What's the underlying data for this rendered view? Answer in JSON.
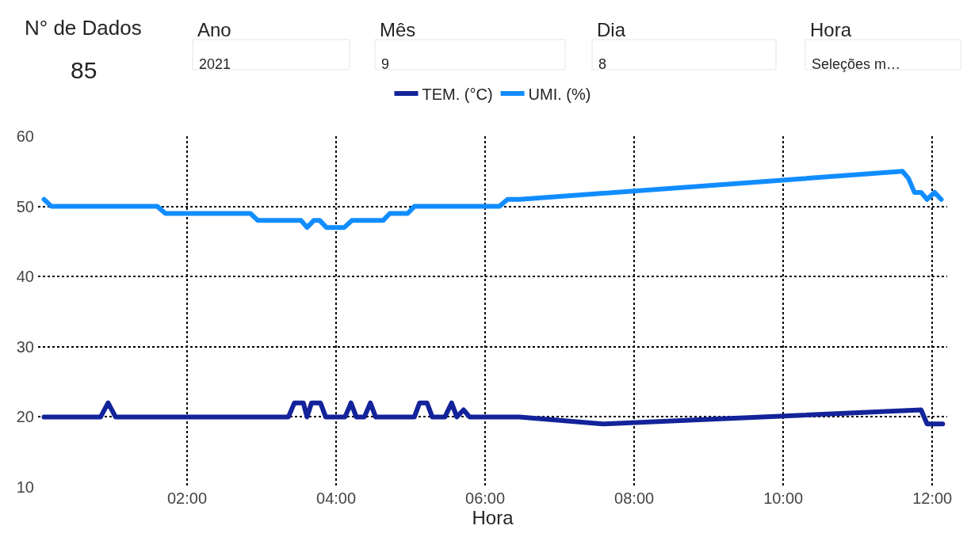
{
  "chart_data": [
    {
      "type": "other",
      "annotations": [
        "N° de Dados",
        "85",
        "Ano",
        "2021",
        "Mês",
        "9",
        "Dia",
        "8",
        "Hora",
        "Seleções m…"
      ]
    },
    {
      "type": "line",
      "xlabel": "Hora",
      "legend": "top",
      "grid": true,
      "marker": "none",
      "line_style": "solid",
      "xlim": [
        0,
        12.2
      ],
      "xticks": [
        {
          "value": 2,
          "label": "02:00"
        },
        {
          "value": 4,
          "label": "04:00"
        },
        {
          "value": 6,
          "label": "06:00"
        },
        {
          "value": 8,
          "label": "08:00"
        },
        {
          "value": 10,
          "label": "10:00"
        },
        {
          "value": 12,
          "label": "12:00"
        }
      ],
      "ylim": [
        10,
        60
      ],
      "yticks": [
        10,
        20,
        30,
        40,
        50,
        60
      ],
      "series": [
        {
          "name": "TEM. (°C)",
          "color": "#13239a",
          "x": [
            0.08,
            0.84,
            0.94,
            1.04,
            3.36,
            3.44,
            3.56,
            3.61,
            3.67,
            3.79,
            3.86,
            4.12,
            4.2,
            4.27,
            4.38,
            4.46,
            4.53,
            5.05,
            5.12,
            5.22,
            5.29,
            5.46,
            5.55,
            5.62,
            5.71,
            5.79,
            6.46,
            7.58,
            11.85,
            11.93,
            12.14
          ],
          "values": [
            20,
            20,
            22,
            20,
            20,
            22,
            22,
            20,
            22,
            22,
            20,
            20,
            22,
            20,
            20,
            22,
            20,
            20,
            22,
            22,
            20,
            20,
            22,
            20,
            21,
            20,
            20,
            19,
            21,
            19,
            19
          ]
        },
        {
          "name": "UMI. (%)",
          "color": "#118dff",
          "x": [
            0.08,
            0.18,
            1.6,
            1.71,
            2.85,
            2.95,
            3.53,
            3.61,
            3.7,
            3.78,
            3.87,
            4.11,
            4.21,
            4.63,
            4.72,
            4.96,
            5.05,
            6.19,
            6.3,
            6.46,
            11.6,
            11.68,
            11.76,
            11.85,
            11.93,
            12.03,
            12.12
          ],
          "values": [
            51,
            50,
            50,
            49,
            49,
            48,
            48,
            47,
            48,
            48,
            47,
            47,
            48,
            48,
            49,
            49,
            50,
            50,
            51,
            51,
            55,
            54,
            52,
            52,
            51,
            52,
            51
          ]
        }
      ]
    }
  ]
}
